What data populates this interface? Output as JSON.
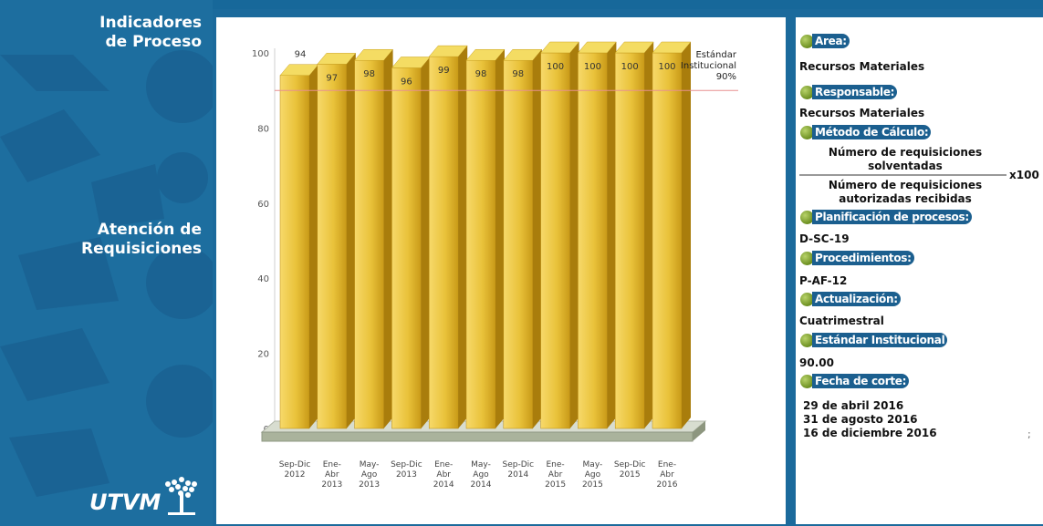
{
  "sidebar": {
    "title_line1": "Indicadores",
    "title_line2": "de Proceso",
    "indicator_line1": "Atención de",
    "indicator_line2": "Requisiciones",
    "logo_text": "UTVM"
  },
  "info": {
    "area_label": "Area:",
    "area_value": "Recursos Materiales",
    "responsable_label": "Responsable:",
    "responsable_value": "Recursos Materiales",
    "metodo_label": "Método de Cálculo:",
    "formula_num_line1": "Número de requisiciones",
    "formula_num_line2": "solventadas",
    "formula_den_line1": "Número de requisiciones",
    "formula_den_line2": "autorizadas recibidas",
    "formula_mult": "x100",
    "planificacion_label": "Planificación de procesos:",
    "planificacion_value": "D-SC-19",
    "procedimientos_label": "Procedimientos:",
    "procedimientos_value": "P-AF-12",
    "actualizacion_label": "Actualización:",
    "actualizacion_value": "Cuatrimestral",
    "estandar_label": "Estándar Institucional",
    "estandar_value": "90.00",
    "fecha_label": "Fecha de corte:",
    "fecha_values": [
      "29 de abril 2016",
      "31 de agosto 2016",
      "16 de diciembre 2016"
    ],
    "stray_char": ";"
  },
  "colors": {
    "brand_blue": "#1d6e9f",
    "bar_gold": "#e8c02c",
    "standard_line": "#e89090",
    "label_green": "#7aa22a"
  },
  "chart_data": {
    "type": "bar",
    "categories": [
      [
        "Sep-Dic",
        "2012"
      ],
      [
        "Ene-",
        "Abr",
        "2013"
      ],
      [
        "May-",
        "Ago",
        "2013"
      ],
      [
        "Sep-Dic",
        "2013"
      ],
      [
        "Ene-",
        "Abr",
        "2014"
      ],
      [
        "May-",
        "Ago",
        "2014"
      ],
      [
        "Sep-Dic",
        "2014"
      ],
      [
        "Ene-",
        "Abr",
        "2015"
      ],
      [
        "May-",
        "Ago",
        "2015"
      ],
      [
        "Sep-Dic",
        "2015"
      ],
      [
        "Ene-",
        "Abr",
        "2016"
      ]
    ],
    "values": [
      94,
      97,
      98,
      96,
      99,
      98,
      98,
      100,
      100,
      100,
      100
    ],
    "ylim": [
      0,
      100
    ],
    "yticks": [
      0,
      20,
      40,
      60,
      80,
      100
    ],
    "standard": {
      "value": 90,
      "label_lines": [
        "Estándar",
        "Institucional",
        "90%"
      ]
    },
    "grid": false,
    "style": "3d"
  }
}
